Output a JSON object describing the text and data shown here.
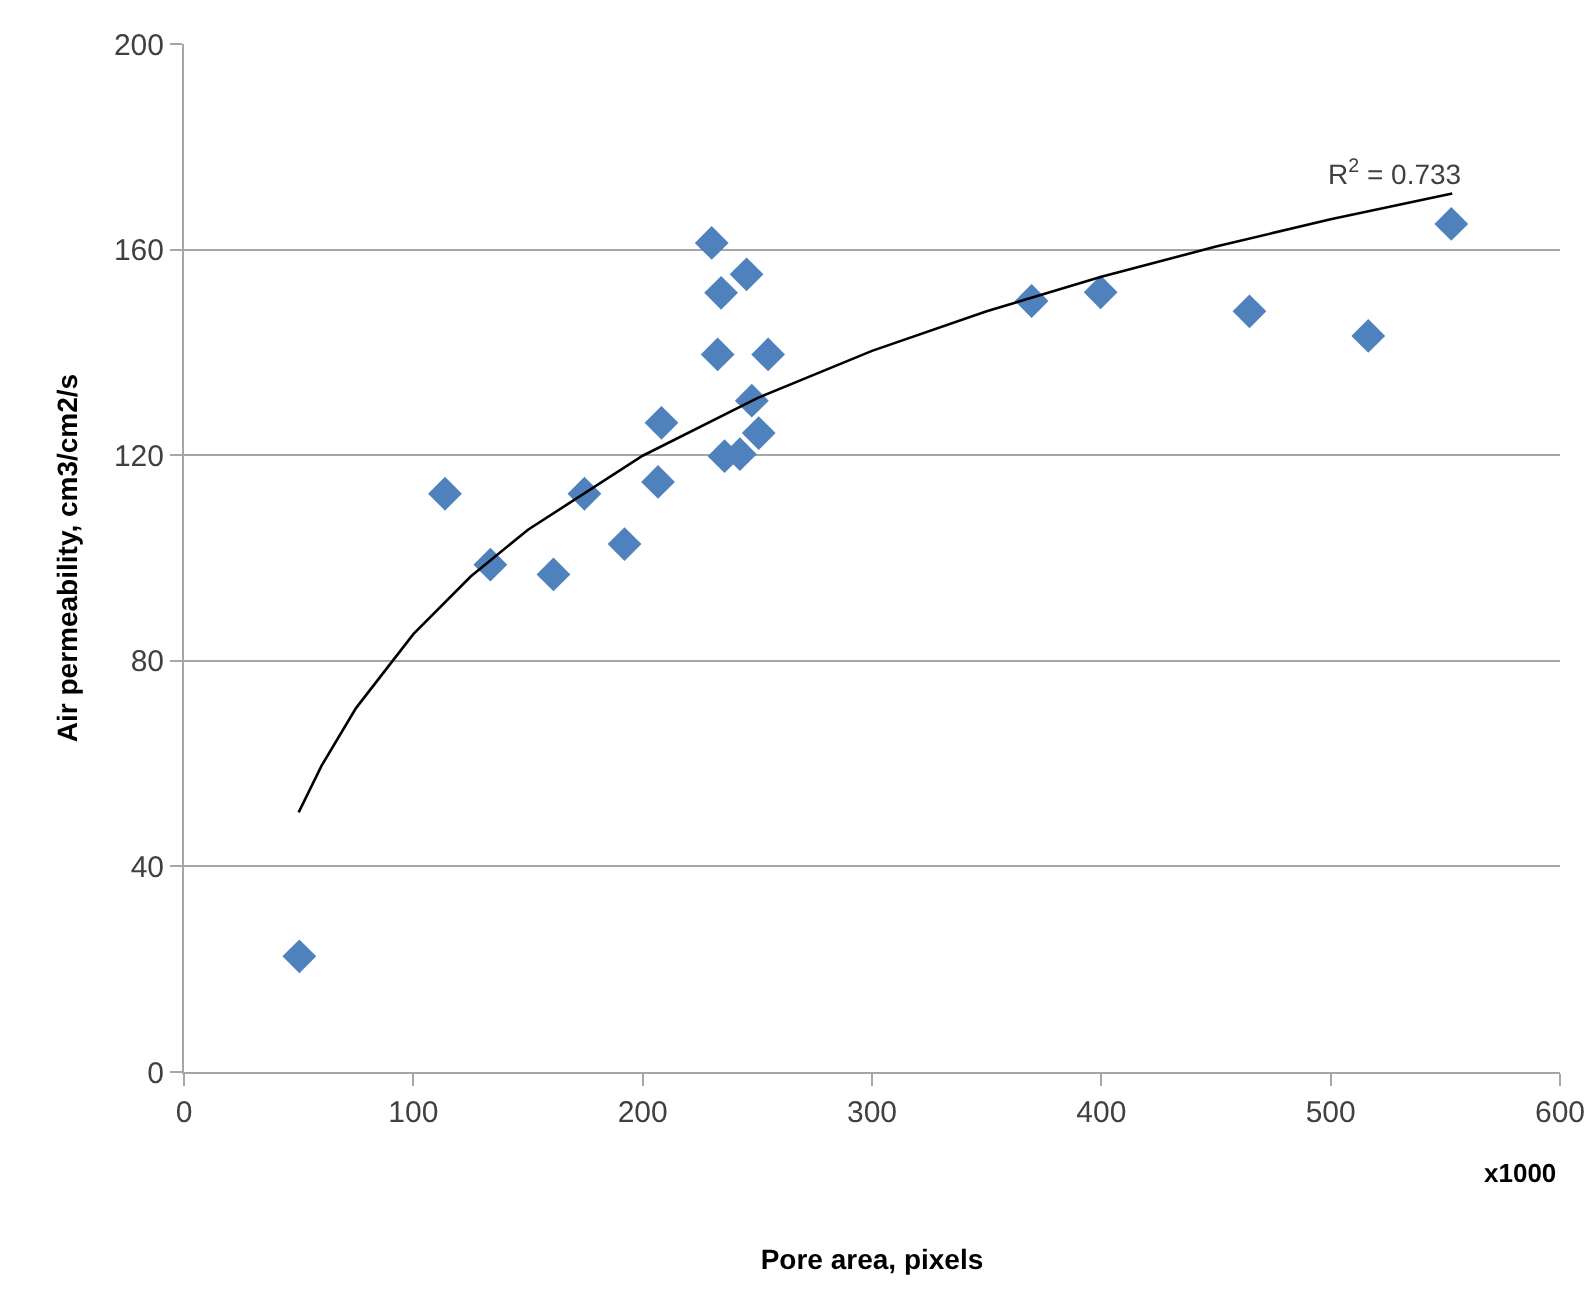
{
  "chart_data": {
    "type": "scatter",
    "xlabel": "Pore area, pixels",
    "ylabel": "Air permeability, cm3/cm2/s",
    "xlim": [
      0,
      600
    ],
    "xticks": [
      0,
      100,
      200,
      300,
      400,
      500,
      600
    ],
    "ylim": [
      0,
      200
    ],
    "yticks": [
      0,
      40,
      80,
      120,
      160,
      200
    ],
    "grid": "y",
    "marker": "diamond",
    "series": [
      {
        "color": "#4f81bd",
        "x": [
          50.3,
          113.8,
          133.6,
          161.1,
          174.6,
          192.1,
          206.7,
          208.2,
          230.1,
          234.2,
          232.7,
          254.7,
          245.3,
          247.6,
          250.6,
          235.7,
          242.4,
          369.6,
          399.7,
          464.6,
          516.4,
          552.6
        ],
        "values": [
          22.5,
          112.5,
          98.7,
          96.8,
          112.5,
          102.7,
          114.8,
          126.3,
          161.3,
          151.6,
          139.6,
          139.6,
          155.2,
          130.6,
          124.3,
          119.8,
          120.2,
          150,
          151.7,
          148,
          143.2,
          165
        ]
      },
      {
        "type": "line",
        "color": "#000000",
        "marker": "none",
        "x": [
          50,
          60,
          75,
          100,
          125,
          150,
          200,
          250,
          300,
          350,
          400,
          450,
          500,
          553
        ],
        "values": [
          50.5,
          59.6,
          70.8,
          85.2,
          96.4,
          105.5,
          119.9,
          131.1,
          140.3,
          148,
          154.7,
          160.6,
          165.9,
          170.9
        ]
      }
    ],
    "annotations": [
      "R$^{2}$ = 0.733",
      "x1000"
    ]
  }
}
